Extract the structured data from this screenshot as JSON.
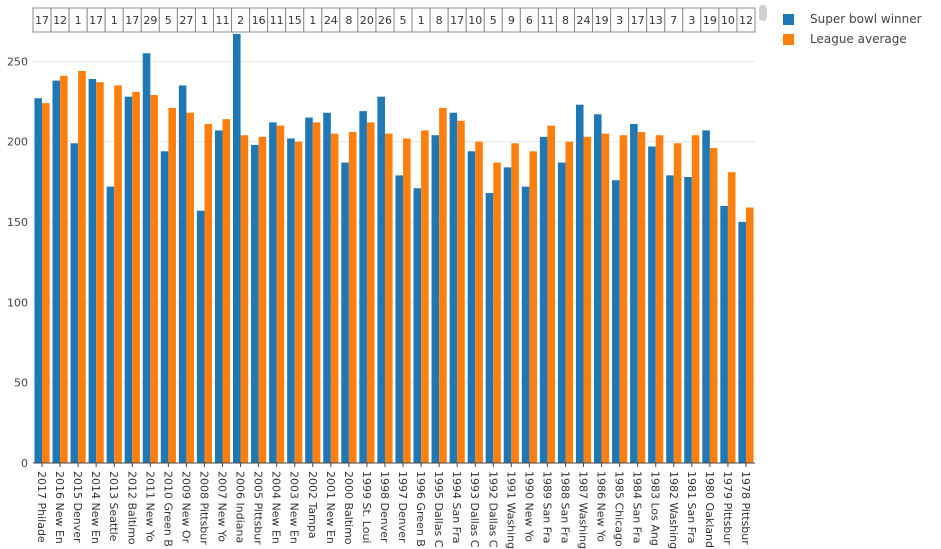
{
  "chart_data": {
    "type": "bar",
    "ylim": [
      0,
      267
    ],
    "yticks": [
      0,
      50,
      100,
      150,
      200,
      250
    ],
    "grid": true,
    "legend_position": "top-right",
    "colors": {
      "winner": "#1f77b4",
      "average": "#ff7f0e"
    },
    "categories": [
      "2017 Philade",
      "2016 New En",
      "2015 Denver",
      "2014 New En",
      "2013 Seattle",
      "2012 Baltimo",
      "2011 New Yo",
      "2010 Green B",
      "2009 New Or",
      "2008 Pittsbur",
      "2007 New Yo",
      "2006 Indiana",
      "2005 Pittsbur",
      "2004 New En",
      "2003 New En",
      "2002 Tampa",
      "2001 New En",
      "2000 Baltimo",
      "1999 St. Loui",
      "1998 Denver",
      "1997 Denver",
      "1996 Green B",
      "1995 Dallas C",
      "1994 San Fra",
      "1993 Dallas C",
      "1992 Dallas C",
      "1991 Washing",
      "1990 New Yo",
      "1989 San Fra",
      "1988 San Fra",
      "1987 Washing",
      "1986 New Yo",
      "1985 Chicago",
      "1984 San Fra",
      "1983 Los Ang",
      "1982 Washing",
      "1981 San Fra",
      "1980 Oakland",
      "1979 Pittsbur",
      "1978 Pittsbur"
    ],
    "rank_labels": [
      "17",
      "12",
      "1",
      "17",
      "1",
      "17",
      "29",
      "5",
      "27",
      "1",
      "11",
      "2",
      "16",
      "11",
      "15",
      "1",
      "24",
      "8",
      "20",
      "26",
      "5",
      "1",
      "8",
      "17",
      "10",
      "5",
      "9",
      "6",
      "11",
      "8",
      "24",
      "19",
      "3",
      "17",
      "13",
      "7",
      "3",
      "19",
      "10",
      "12"
    ],
    "series": [
      {
        "name": "Super bowl winner",
        "values": [
          227,
          238,
          199,
          239,
          172,
          228,
          255,
          194,
          235,
          157,
          207,
          268,
          198,
          212,
          202,
          215,
          218,
          187,
          219,
          228,
          179,
          171,
          204,
          218,
          194,
          168,
          184,
          172,
          203,
          187,
          223,
          217,
          176,
          211,
          197,
          179,
          178,
          207,
          160,
          150
        ]
      },
      {
        "name": "League average",
        "values": [
          224,
          241,
          244,
          237,
          235,
          231,
          229,
          221,
          218,
          211,
          214,
          204,
          203,
          210,
          200,
          212,
          205,
          206,
          212,
          205,
          202,
          207,
          221,
          213,
          200,
          187,
          199,
          194,
          210,
          200,
          203,
          205,
          204,
          206,
          204,
          199,
          204,
          196,
          181,
          159
        ]
      }
    ]
  }
}
